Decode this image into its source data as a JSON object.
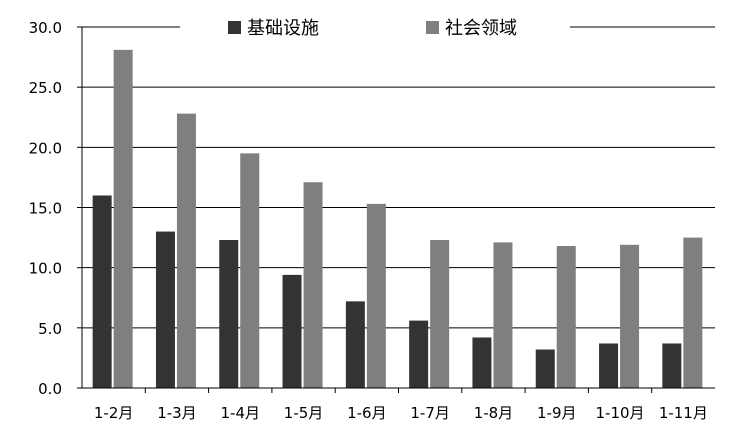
{
  "chart_data": {
    "type": "bar",
    "title": "",
    "xlabel": "",
    "ylabel": "",
    "categories": [
      "1-2月",
      "1-3月",
      "1-4月",
      "1-5月",
      "1-6月",
      "1-7月",
      "1-8月",
      "1-9月",
      "1-10月",
      "1-11月"
    ],
    "series": [
      {
        "name": "基础设施",
        "values": [
          16.0,
          13.0,
          12.3,
          9.4,
          7.2,
          5.6,
          4.2,
          3.2,
          3.7,
          3.7
        ],
        "color": "#333333"
      },
      {
        "name": "社会领域",
        "values": [
          28.1,
          22.8,
          19.5,
          17.1,
          15.3,
          12.3,
          12.1,
          11.8,
          11.9,
          12.5
        ],
        "color": "#7f7f7f"
      }
    ],
    "ylim": [
      0,
      30
    ],
    "yticks": [
      "0.0",
      "5.0",
      "10.0",
      "15.0",
      "20.0",
      "25.0",
      "30.0"
    ],
    "grid": true,
    "legend_position": "top-center"
  }
}
